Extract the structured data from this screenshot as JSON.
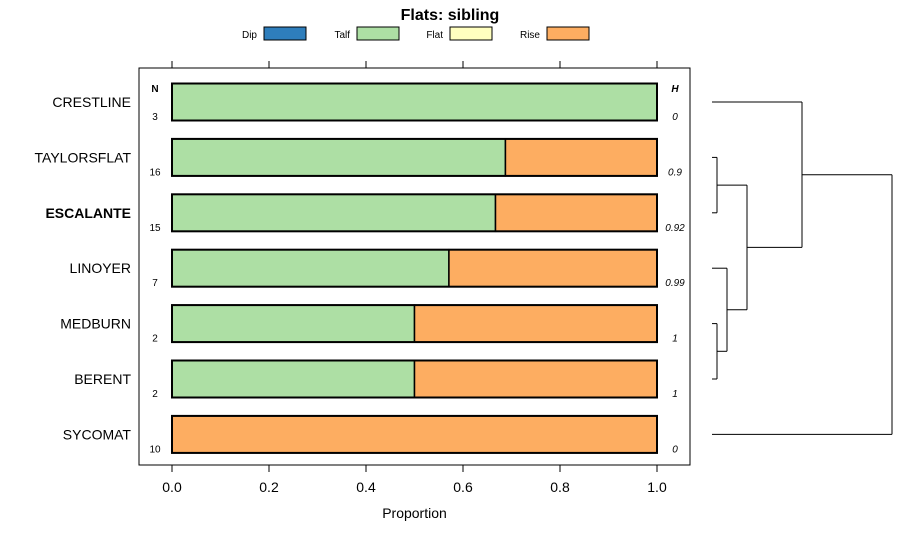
{
  "chart_data": {
    "type": "bar",
    "orientation": "horizontal",
    "stacked": true,
    "title": "Flats: sibling",
    "xlabel": "Proportion",
    "ylabel": "",
    "xlim": [
      0,
      1
    ],
    "xticks": [
      "0.0",
      "0.2",
      "0.4",
      "0.6",
      "0.8",
      "1.0"
    ],
    "xtick_values": [
      0,
      0.2,
      0.4,
      0.6,
      0.8,
      1.0
    ],
    "legend_position": "top",
    "legend": [
      {
        "name": "Dip",
        "color": "#2e7ebc"
      },
      {
        "name": "Talf",
        "color": "#addfa4"
      },
      {
        "name": "Flat",
        "color": "#ffffbf"
      },
      {
        "name": "Rise",
        "color": "#fdad61"
      }
    ],
    "n_header": "N",
    "h_header": "H",
    "categories": [
      "CRESTLINE",
      "TAYLORSFLAT",
      "ESCALANTE",
      "LINOYER",
      "MEDBURN",
      "BERENT",
      "SYCOMAT"
    ],
    "highlight": "ESCALANTE",
    "n": [
      "3",
      "16",
      "15",
      "7",
      "2",
      "2",
      "10"
    ],
    "h": [
      "0",
      "0.9",
      "0.92",
      "0.99",
      "1",
      "1",
      "0"
    ],
    "series": [
      {
        "name": "Dip",
        "values": [
          0,
          0,
          0,
          0,
          0,
          0,
          0
        ]
      },
      {
        "name": "Talf",
        "values": [
          1.0,
          0.6875,
          0.667,
          0.571,
          0.5,
          0.5,
          0.0
        ]
      },
      {
        "name": "Flat",
        "values": [
          0,
          0,
          0,
          0,
          0,
          0,
          0
        ]
      },
      {
        "name": "Rise",
        "values": [
          0.0,
          0.3125,
          0.333,
          0.429,
          0.5,
          0.5,
          1.0
        ]
      }
    ],
    "dendrogram": {
      "description_merges": [
        {
          "left": "MEDBURN",
          "right": "BERENT",
          "height": 0.05
        },
        {
          "left": "LINOYER",
          "right": "MEDBURN+BERENT",
          "height": 0.15
        },
        {
          "left": "TAYLORSFLAT",
          "right": "ESCALANTE",
          "height": 0.05
        },
        {
          "left": "TAYLORSFLAT+ESCALANTE",
          "right": "LINOYER+MEDBURN+BERENT",
          "height": 0.35
        },
        {
          "left": "CRESTLINE",
          "right": "TAYLORSFLAT..BERENT",
          "height": 0.9
        },
        {
          "left": "CRESTLINE..BERENT",
          "right": "SYCOMAT",
          "height": 1.8
        }
      ]
    }
  }
}
